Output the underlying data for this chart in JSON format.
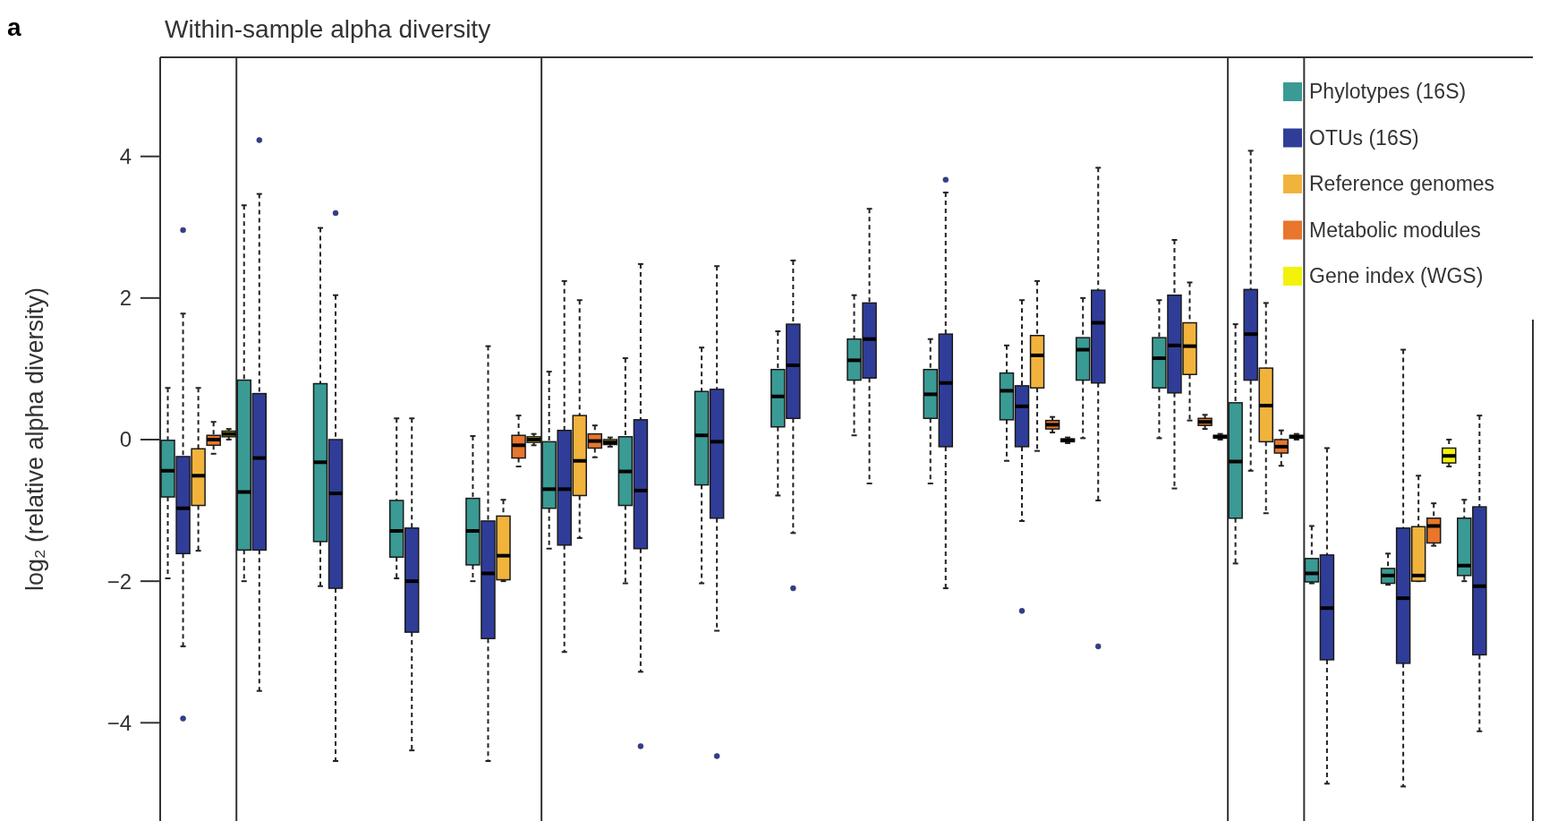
{
  "chart_data": {
    "type": "box",
    "title": "Within-sample alpha diversity",
    "ylabel": "log₂ (relative alpha diversity)",
    "annotations": [
      "a"
    ],
    "categories": [
      null,
      null,
      null,
      null,
      null,
      null,
      null,
      null,
      null,
      null,
      null,
      null,
      null,
      null,
      null,
      null,
      null,
      null
    ],
    "ylim": [
      -5.4,
      5.4
    ],
    "yticks": [
      -4,
      -2,
      0,
      2,
      4
    ],
    "legend": "top right",
    "series": [
      {
        "name": "Phylotypes (16S)",
        "color": "#3a9a94",
        "boxes": [
          {
            "low": -1.96,
            "q1": -0.81,
            "median": -0.44,
            "q3": -0.01,
            "high": 0.73
          },
          {
            "low": -2.0,
            "q1": -1.56,
            "median": -0.74,
            "q3": 0.84,
            "high": 3.31
          },
          {
            "low": -2.07,
            "q1": -1.44,
            "median": -0.32,
            "q3": 0.79,
            "high": 2.99
          },
          {
            "low": -1.96,
            "q1": -1.66,
            "median": -1.29,
            "q3": -0.86,
            "high": 0.3
          },
          {
            "low": -2.0,
            "q1": -1.77,
            "median": -1.29,
            "q3": -0.83,
            "high": 0.05
          },
          {
            "low": -1.54,
            "q1": -0.97,
            "median": -0.7,
            "q3": -0.03,
            "high": 0.96
          },
          {
            "low": -2.03,
            "q1": -0.93,
            "median": -0.45,
            "q3": 0.04,
            "high": 1.15
          },
          {
            "low": -2.03,
            "q1": -0.64,
            "median": 0.06,
            "q3": 0.68,
            "high": 1.3
          },
          {
            "low": -0.79,
            "q1": 0.18,
            "median": 0.61,
            "q3": 0.99,
            "high": 1.53
          },
          {
            "low": 0.06,
            "q1": 0.84,
            "median": 1.12,
            "q3": 1.42,
            "high": 2.04
          },
          {
            "low": -0.62,
            "q1": 0.3,
            "median": 0.64,
            "q3": 0.99,
            "high": 1.42
          },
          {
            "low": -0.3,
            "q1": 0.28,
            "median": 0.69,
            "q3": 0.94,
            "high": 1.33
          },
          {
            "low": 0.02,
            "q1": 0.84,
            "median": 1.27,
            "q3": 1.44,
            "high": 2.0
          },
          {
            "low": 0.02,
            "q1": 0.73,
            "median": 1.15,
            "q3": 1.44,
            "high": 1.97
          },
          {
            "low": -1.75,
            "q1": -1.11,
            "median": -0.31,
            "q3": 0.52,
            "high": 1.63
          },
          {
            "low": -2.03,
            "q1": -2.01,
            "median": -1.89,
            "q3": -1.68,
            "high": -1.22
          },
          {
            "low": -2.05,
            "q1": -2.03,
            "median": -1.92,
            "q3": -1.82,
            "high": -1.61
          },
          {
            "low": -2.0,
            "q1": -1.92,
            "median": -1.78,
            "q3": -1.11,
            "high": -0.85
          }
        ]
      },
      {
        "name": "OTUs (16S)",
        "color": "#2f3d99",
        "boxes": [
          {
            "low": -2.92,
            "q1": -1.61,
            "median": -0.97,
            "q3": -0.24,
            "high": 1.78,
            "outliers": [
              2.96,
              -3.94
            ]
          },
          {
            "low": -3.55,
            "q1": -1.56,
            "median": -0.26,
            "q3": 0.65,
            "high": 3.47,
            "outliers": [
              4.23
            ]
          },
          {
            "low": -4.54,
            "q1": -2.1,
            "median": -0.76,
            "q3": 0.0,
            "high": 2.04,
            "outliers": [
              3.2
            ]
          },
          {
            "low": -4.39,
            "q1": -2.72,
            "median": -2.0,
            "q3": -1.25,
            "high": 0.3
          },
          {
            "low": -4.54,
            "q1": -2.81,
            "median": -1.89,
            "q3": -1.15,
            "high": 1.32
          },
          {
            "low": -3.0,
            "q1": -1.49,
            "median": -0.7,
            "q3": 0.13,
            "high": 2.24
          },
          {
            "low": -3.28,
            "q1": -1.54,
            "median": -0.72,
            "q3": 0.28,
            "high": 2.48,
            "outliers": [
              -4.33
            ]
          },
          {
            "low": -2.7,
            "q1": -1.11,
            "median": -0.03,
            "q3": 0.71,
            "high": 2.45,
            "outliers": [
              -4.47
            ]
          },
          {
            "low": -1.32,
            "q1": 0.3,
            "median": 1.05,
            "q3": 1.63,
            "high": 2.53,
            "outliers": [
              -2.1
            ]
          },
          {
            "low": -0.62,
            "q1": 0.87,
            "median": 1.42,
            "q3": 1.93,
            "high": 3.26
          },
          {
            "low": -2.1,
            "q1": -0.1,
            "median": 0.8,
            "q3": 1.49,
            "high": 3.49,
            "outliers": [
              3.67
            ]
          },
          {
            "low": -1.15,
            "q1": -0.1,
            "median": 0.47,
            "q3": 0.76,
            "high": 1.97,
            "outliers": [
              -2.42
            ]
          },
          {
            "low": -0.86,
            "q1": 0.8,
            "median": 1.65,
            "q3": 2.11,
            "high": 3.84,
            "outliers": [
              -2.92
            ]
          },
          {
            "low": -0.69,
            "q1": 0.66,
            "median": 1.33,
            "q3": 2.04,
            "high": 2.82
          },
          {
            "low": -0.44,
            "q1": 0.84,
            "median": 1.49,
            "q3": 2.12,
            "high": 4.08
          },
          {
            "low": -4.86,
            "q1": -3.11,
            "median": -2.38,
            "q3": -1.63,
            "high": -0.12
          },
          {
            "low": -4.9,
            "q1": -3.16,
            "median": -2.24,
            "q3": -1.25,
            "high": 1.27
          },
          {
            "low": -4.12,
            "q1": -3.04,
            "median": -2.07,
            "q3": -0.95,
            "high": 0.34
          }
        ]
      },
      {
        "name": "Reference genomes",
        "color": "#f2b33d",
        "boxes": [
          {
            "low": -1.57,
            "q1": -0.93,
            "median": -0.51,
            "q3": -0.13,
            "high": 0.73
          },
          null,
          null,
          null,
          {
            "low": -2.0,
            "q1": -1.98,
            "median": -1.64,
            "q3": -1.08,
            "high": -0.85
          },
          {
            "low": -1.39,
            "q1": -0.79,
            "median": -0.3,
            "q3": 0.34,
            "high": 1.97
          },
          null,
          null,
          null,
          null,
          null,
          {
            "low": -0.16,
            "q1": 0.73,
            "median": 1.19,
            "q3": 1.47,
            "high": 2.24
          },
          null,
          {
            "low": 0.27,
            "q1": 0.92,
            "median": 1.32,
            "q3": 1.65,
            "high": 2.22
          },
          {
            "low": -1.04,
            "q1": -0.03,
            "median": 0.48,
            "q3": 1.01,
            "high": 1.93
          },
          null,
          {
            "low": -2.0,
            "q1": -2.0,
            "median": -1.92,
            "q3": -1.23,
            "high": -0.51
          },
          null
        ]
      },
      {
        "name": "Metabolic modules",
        "color": "#e8762c",
        "boxes": [
          {
            "low": -0.2,
            "q1": -0.08,
            "median": 0.0,
            "q3": 0.06,
            "high": 0.25
          },
          null,
          null,
          null,
          {
            "low": -0.38,
            "q1": -0.26,
            "median": -0.08,
            "q3": 0.06,
            "high": 0.34
          },
          {
            "low": -0.25,
            "q1": -0.12,
            "median": -0.02,
            "q3": 0.08,
            "high": 0.2
          },
          null,
          null,
          null,
          null,
          null,
          {
            "low": 0.1,
            "q1": 0.15,
            "median": 0.21,
            "q3": 0.27,
            "high": 0.32
          },
          null,
          {
            "low": 0.15,
            "q1": 0.2,
            "median": 0.25,
            "q3": 0.3,
            "high": 0.35
          },
          {
            "low": -0.37,
            "q1": -0.19,
            "median": -0.1,
            "q3": 0.0,
            "high": 0.13
          },
          null,
          {
            "low": -1.5,
            "q1": -1.46,
            "median": -1.22,
            "q3": -1.11,
            "high": -0.9
          },
          null
        ]
      },
      {
        "name": "Gene index (WGS)",
        "color": "#f2f20a",
        "boxes": [
          {
            "low": 0.0,
            "q1": 0.04,
            "median": 0.08,
            "q3": 0.12,
            "high": 0.15
          },
          null,
          null,
          null,
          {
            "low": -0.08,
            "q1": -0.04,
            "median": 0.0,
            "q3": 0.04,
            "high": 0.08
          },
          {
            "low": -0.1,
            "q1": -0.07,
            "median": -0.04,
            "q3": 0.0,
            "high": 0.03
          },
          null,
          null,
          null,
          null,
          null,
          {
            "low": -0.05,
            "q1": -0.03,
            "median": -0.01,
            "q3": 0.01,
            "high": 0.03
          },
          null,
          {
            "low": 0.0,
            "q1": 0.02,
            "median": 0.04,
            "q3": 0.06,
            "high": 0.08
          },
          {
            "low": 0.0,
            "q1": 0.02,
            "median": 0.04,
            "q3": 0.06,
            "high": 0.08
          },
          null,
          {
            "low": -0.38,
            "q1": -0.33,
            "median": -0.23,
            "q3": -0.12,
            "high": 0.0
          },
          null
        ]
      }
    ]
  }
}
